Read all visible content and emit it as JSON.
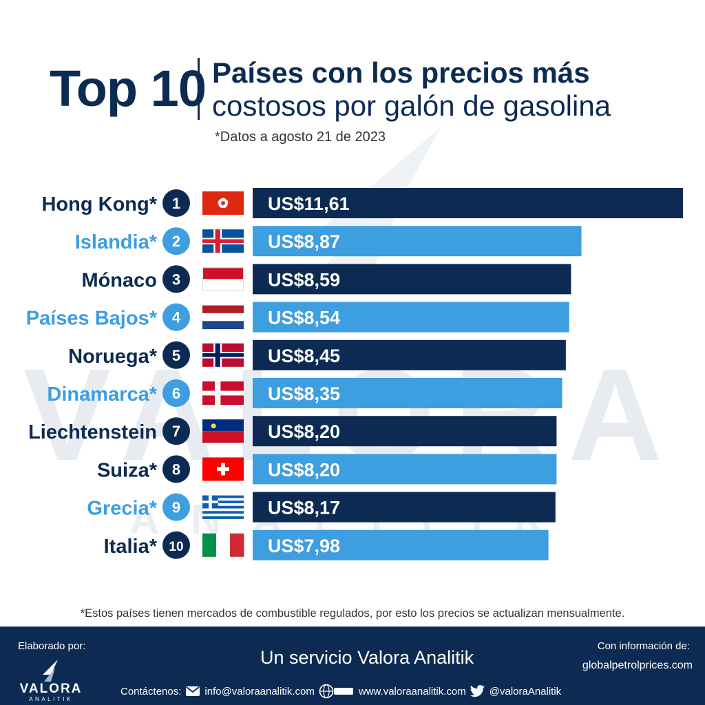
{
  "header": {
    "top_label": "Top 10",
    "title_line1": "Países con los precios más",
    "title_line2": "costosos por galón de gasolina",
    "date_note": "*Datos a agosto 21 de 2023"
  },
  "watermark": {
    "word": "VALORA",
    "sub": "ANALITIK"
  },
  "chart_data": {
    "type": "bar",
    "orientation": "horizontal",
    "title": "Países con los precios más costosos por galón de gasolina",
    "categories": [
      "Hong Kong*",
      "Islandia*",
      "Mónaco",
      "Países Bajos*",
      "Noruega*",
      "Dinamarca*",
      "Liechtenstein",
      "Suiza*",
      "Grecia*",
      "Italia*"
    ],
    "ranks": [
      "1",
      "2",
      "3",
      "4",
      "5",
      "6",
      "7",
      "8",
      "9",
      "10"
    ],
    "values": [
      11.61,
      8.87,
      8.59,
      8.54,
      8.45,
      8.35,
      8.2,
      8.2,
      8.17,
      7.98
    ],
    "value_labels": [
      "US$11,61",
      "US$8,87",
      "US$8,59",
      "US$8,54",
      "US$8,45",
      "US$8,35",
      "US$8,20",
      "US$8,20",
      "US$8,17",
      "US$7,98"
    ],
    "flags": [
      "hong-kong-flag-icon",
      "iceland-flag-icon",
      "monaco-flag-icon",
      "netherlands-flag-icon",
      "norway-flag-icon",
      "denmark-flag-icon",
      "liechtenstein-flag-icon",
      "switzerland-flag-icon",
      "greece-flag-icon",
      "italy-flag-icon"
    ],
    "label_colors": [
      "#0d2b52",
      "#3d9ee0",
      "#0d2b52",
      "#3d9ee0",
      "#0d2b52",
      "#3d9ee0",
      "#0d2b52",
      "#0d2b52",
      "#3d9ee0",
      "#0d2b52"
    ],
    "bar_colors": [
      "#0d2b52",
      "#3d9ee0",
      "#0d2b52",
      "#3d9ee0",
      "#0d2b52",
      "#3d9ee0",
      "#0d2b52",
      "#3d9ee0",
      "#0d2b52",
      "#3d9ee0"
    ],
    "xlim": [
      0,
      11.61
    ]
  },
  "footnote": "*Estos países tienen mercados de combustible regulados, por esto los precios se actualizan mensualmente.",
  "footer": {
    "made_by": "Elaborado por:",
    "logo_word": "VALORA",
    "logo_sub": "ANALITIK",
    "service": "Un servicio Valora Analitik",
    "info_label": "Con información de:",
    "info_site": "globalpetrolprices.com",
    "contact_label": "Contáctenos:",
    "email": "info@valoraanalitik.com",
    "web": "www.valoraanalitik.com",
    "twitter": "@valoraAnalitik"
  }
}
